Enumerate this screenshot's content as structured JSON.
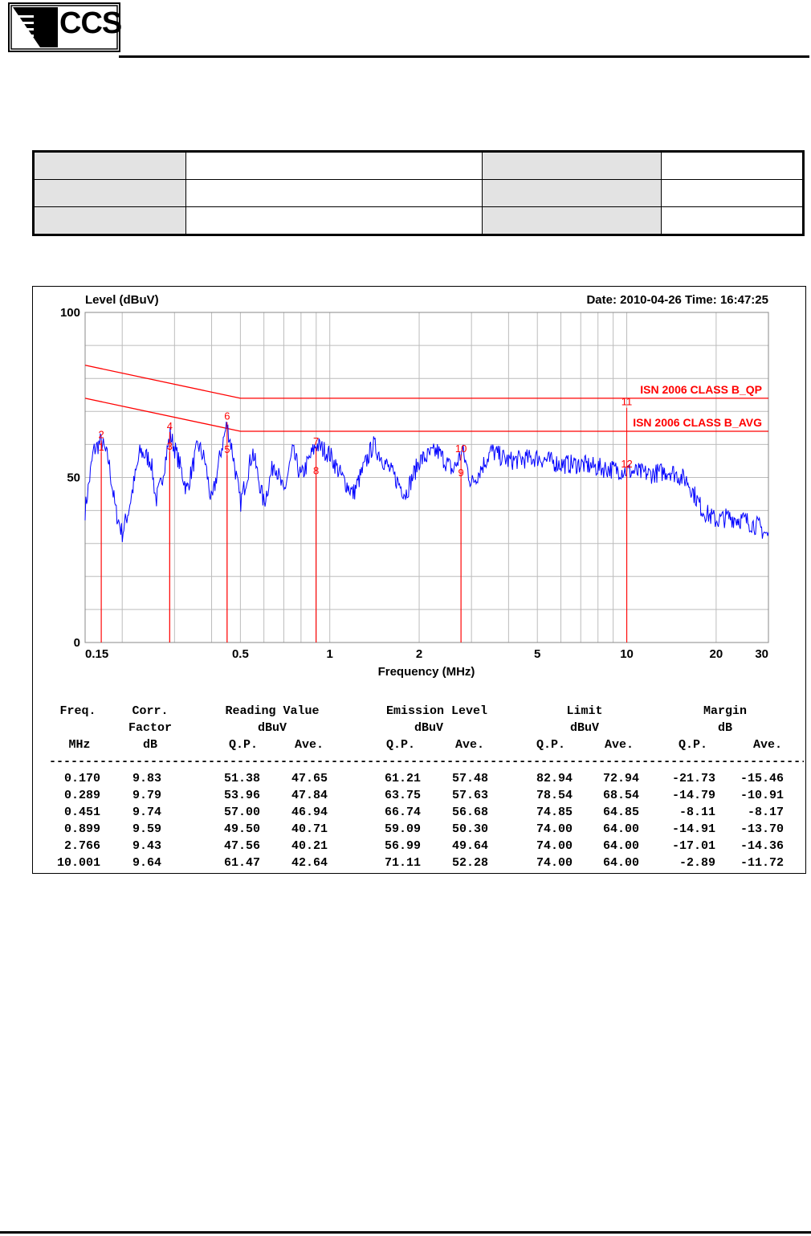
{
  "header": {
    "logo_text": "CCS"
  },
  "info_table": {
    "rows": [
      [
        "",
        "",
        "",
        ""
      ],
      [
        "",
        "",
        "",
        ""
      ],
      [
        "",
        "",
        "",
        ""
      ]
    ]
  },
  "chart_data": {
    "type": "line",
    "title": "",
    "ylabel": "Level (dBuV)",
    "xlabel": "Frequency (MHz)",
    "date_time": "Date: 2010-04-26  Time: 16:47:25",
    "x_scale": "log",
    "xlim": [
      0.15,
      30
    ],
    "ylim": [
      0,
      100
    ],
    "x_ticks": [
      "0.15",
      "0.5",
      "1",
      "2",
      "5",
      "10",
      "20",
      "30"
    ],
    "y_ticks": [
      "0",
      "50",
      "100"
    ],
    "grid": true,
    "limit_lines": [
      {
        "name": "ISN 2006 CLASS B_QP",
        "points": [
          [
            0.15,
            84
          ],
          [
            0.5,
            74
          ],
          [
            30,
            74
          ]
        ],
        "color": "#ff0000"
      },
      {
        "name": "ISN 2006 CLASS B_AVG",
        "points": [
          [
            0.15,
            74
          ],
          [
            0.5,
            64
          ],
          [
            30,
            64
          ]
        ],
        "color": "#ff0000"
      }
    ],
    "markers": [
      {
        "label": "1",
        "freq": 0.17,
        "level": 57.48
      },
      {
        "label": "2",
        "freq": 0.17,
        "level": 61.21
      },
      {
        "label": "3",
        "freq": 0.289,
        "level": 57.63
      },
      {
        "label": "4",
        "freq": 0.289,
        "level": 63.75
      },
      {
        "label": "5",
        "freq": 0.451,
        "level": 56.68
      },
      {
        "label": "6",
        "freq": 0.451,
        "level": 66.74
      },
      {
        "label": "7",
        "freq": 0.899,
        "level": 59.09
      },
      {
        "label": "8",
        "freq": 0.899,
        "level": 50.3
      },
      {
        "label": "9",
        "freq": 2.766,
        "level": 49.64
      },
      {
        "label": "10",
        "freq": 2.766,
        "level": 56.99
      },
      {
        "label": "11",
        "freq": 10.001,
        "level": 71.11
      },
      {
        "label": "12",
        "freq": 10.001,
        "level": 52.28
      }
    ],
    "trace_envelope": [
      [
        0.15,
        40
      ],
      [
        0.16,
        58
      ],
      [
        0.17,
        61
      ],
      [
        0.18,
        55
      ],
      [
        0.19,
        40
      ],
      [
        0.2,
        33
      ],
      [
        0.21,
        40
      ],
      [
        0.23,
        58
      ],
      [
        0.25,
        55
      ],
      [
        0.26,
        43
      ],
      [
        0.27,
        48
      ],
      [
        0.29,
        63
      ],
      [
        0.31,
        55
      ],
      [
        0.33,
        46
      ],
      [
        0.36,
        60
      ],
      [
        0.38,
        55
      ],
      [
        0.4,
        42
      ],
      [
        0.43,
        58
      ],
      [
        0.45,
        66
      ],
      [
        0.47,
        58
      ],
      [
        0.5,
        42
      ],
      [
        0.55,
        58
      ],
      [
        0.6,
        42
      ],
      [
        0.65,
        55
      ],
      [
        0.7,
        45
      ],
      [
        0.75,
        58
      ],
      [
        0.8,
        50
      ],
      [
        0.9,
        60
      ],
      [
        1.0,
        57
      ],
      [
        1.1,
        50
      ],
      [
        1.2,
        45
      ],
      [
        1.4,
        60
      ],
      [
        1.6,
        52
      ],
      [
        1.8,
        45
      ],
      [
        2.0,
        55
      ],
      [
        2.3,
        58
      ],
      [
        2.6,
        52
      ],
      [
        2.8,
        58
      ],
      [
        3.0,
        48
      ],
      [
        3.5,
        58
      ],
      [
        4.0,
        55
      ],
      [
        5.0,
        56
      ],
      [
        6.0,
        54
      ],
      [
        7.0,
        54
      ],
      [
        8.0,
        53
      ],
      [
        10.0,
        52
      ],
      [
        12.0,
        51
      ],
      [
        14.0,
        52
      ],
      [
        16.0,
        49
      ],
      [
        18.0,
        40
      ],
      [
        20.0,
        37
      ],
      [
        22.0,
        38
      ],
      [
        25.0,
        37
      ],
      [
        28.0,
        35
      ],
      [
        30.0,
        32
      ]
    ],
    "trace_color": "#0000ff",
    "table": {
      "header1": [
        "Freq.",
        "Corr.",
        "Reading Value",
        "Emission Level",
        "Limit",
        "Margin"
      ],
      "header2": [
        "Factor",
        "dBuV",
        "dBuV",
        "dBuV",
        "dB"
      ],
      "header3": [
        "MHz",
        "dB",
        "Q.P.",
        "Ave.",
        "Q.P.",
        "Ave.",
        "Q.P.",
        "Ave.",
        "Q.P.",
        "Ave."
      ],
      "rows": [
        [
          "0.170",
          "9.83",
          "51.38",
          "47.65",
          "61.21",
          "57.48",
          "82.94",
          "72.94",
          "-21.73",
          "-15.46"
        ],
        [
          "0.289",
          "9.79",
          "53.96",
          "47.84",
          "63.75",
          "57.63",
          "78.54",
          "68.54",
          "-14.79",
          "-10.91"
        ],
        [
          "0.451",
          "9.74",
          "57.00",
          "46.94",
          "66.74",
          "56.68",
          "74.85",
          "64.85",
          "-8.11",
          "-8.17"
        ],
        [
          "0.899",
          "9.59",
          "49.50",
          "40.71",
          "59.09",
          "50.30",
          "74.00",
          "64.00",
          "-14.91",
          "-13.70"
        ],
        [
          "2.766",
          "9.43",
          "47.56",
          "40.21",
          "56.99",
          "49.64",
          "74.00",
          "64.00",
          "-17.01",
          "-14.36"
        ],
        [
          "10.001",
          "9.64",
          "61.47",
          "42.64",
          "71.11",
          "52.28",
          "74.00",
          "64.00",
          "-2.89",
          "-11.72"
        ]
      ]
    }
  }
}
